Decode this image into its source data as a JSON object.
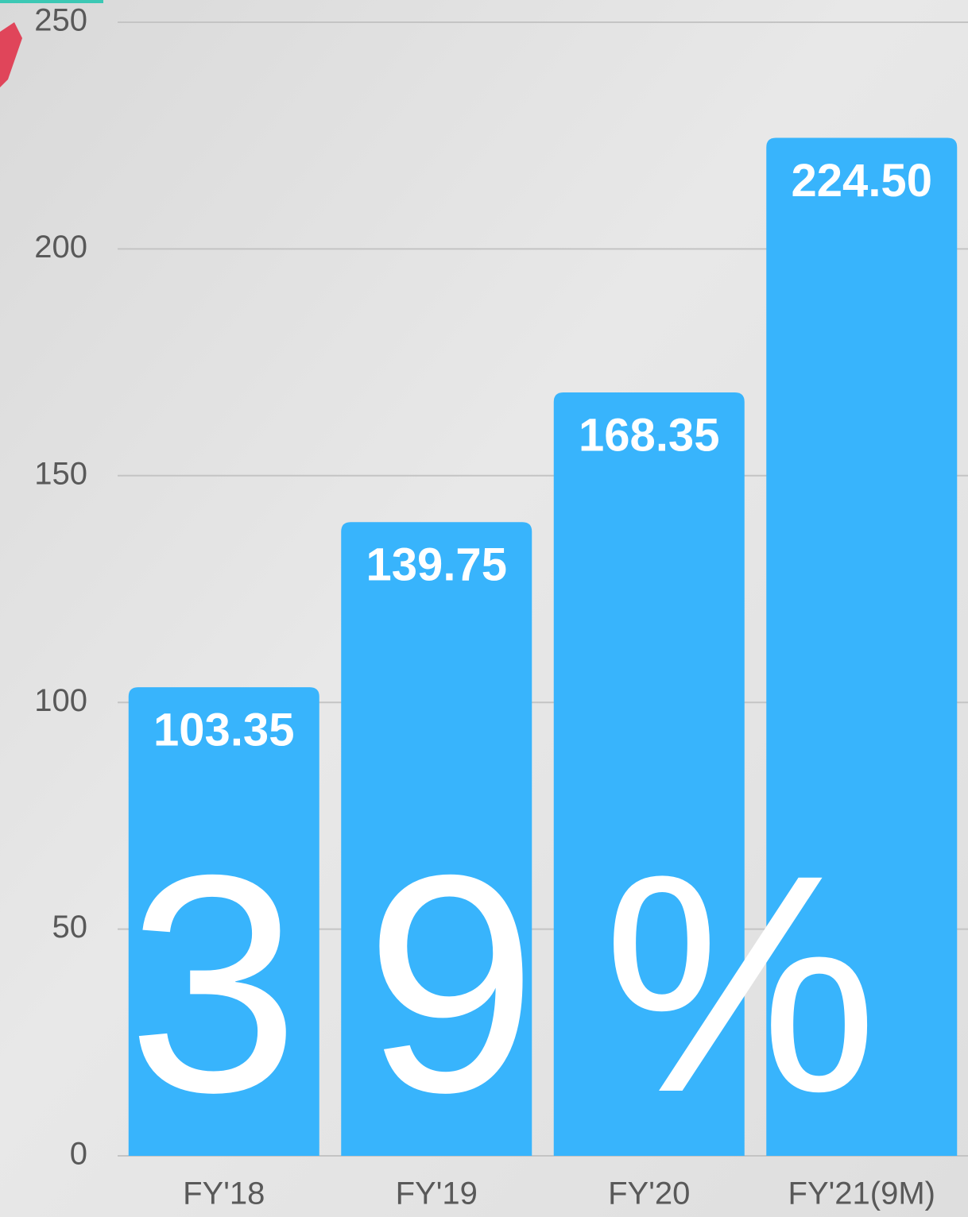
{
  "chart_data": {
    "type": "bar",
    "categories": [
      "FY'18",
      "FY'19",
      "FY'20",
      "FY'21(9M)"
    ],
    "values": [
      103.35,
      139.75,
      168.35,
      224.5
    ],
    "value_labels": [
      "103.35",
      "139.75",
      "168.35",
      "224.50"
    ],
    "color": "#38b4fc",
    "ylim": [
      0,
      250
    ],
    "yticks": [
      0,
      50,
      100,
      150,
      200,
      250
    ],
    "grid": true,
    "overlay_text": "39%"
  }
}
